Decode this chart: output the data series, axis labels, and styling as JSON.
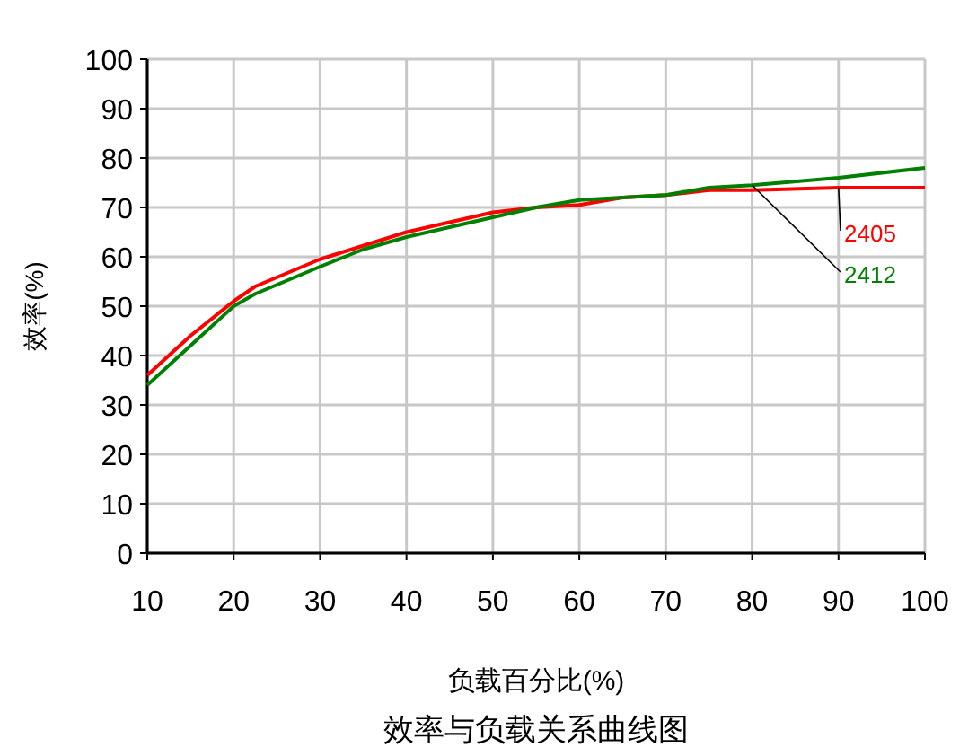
{
  "chart_data": {
    "type": "line",
    "title": "效率与负载关系曲线图",
    "xlabel": "负载百分比(%)",
    "ylabel": "效率(%)",
    "xlim": [
      10,
      100
    ],
    "xticks": [
      10,
      20,
      30,
      40,
      50,
      60,
      70,
      80,
      90,
      100
    ],
    "ylim": [
      0,
      100
    ],
    "yticks": [
      0,
      10,
      20,
      30,
      40,
      50,
      60,
      70,
      80,
      90,
      100
    ],
    "grid": true,
    "legend": false,
    "marker": "none",
    "line_style": "solid",
    "series": [
      {
        "name": "2405",
        "color": "#ff0000",
        "x": [
          10,
          15,
          20,
          22.5,
          30,
          40,
          50,
          55,
          60,
          65,
          70,
          75,
          80,
          90,
          100
        ],
        "values": [
          36,
          44,
          51,
          54,
          59.5,
          65,
          69,
          70,
          70.5,
          72,
          72.5,
          73.5,
          73.5,
          74,
          74
        ]
      },
      {
        "name": "2412",
        "color": "#008000",
        "x": [
          10,
          15,
          20,
          22.5,
          30,
          35,
          40,
          50,
          55,
          60,
          70,
          75,
          80,
          90,
          100
        ],
        "values": [
          34,
          42,
          50,
          52.5,
          58,
          61.5,
          64,
          68,
          70,
          71.5,
          72.5,
          74,
          74.5,
          76,
          78
        ]
      }
    ]
  }
}
